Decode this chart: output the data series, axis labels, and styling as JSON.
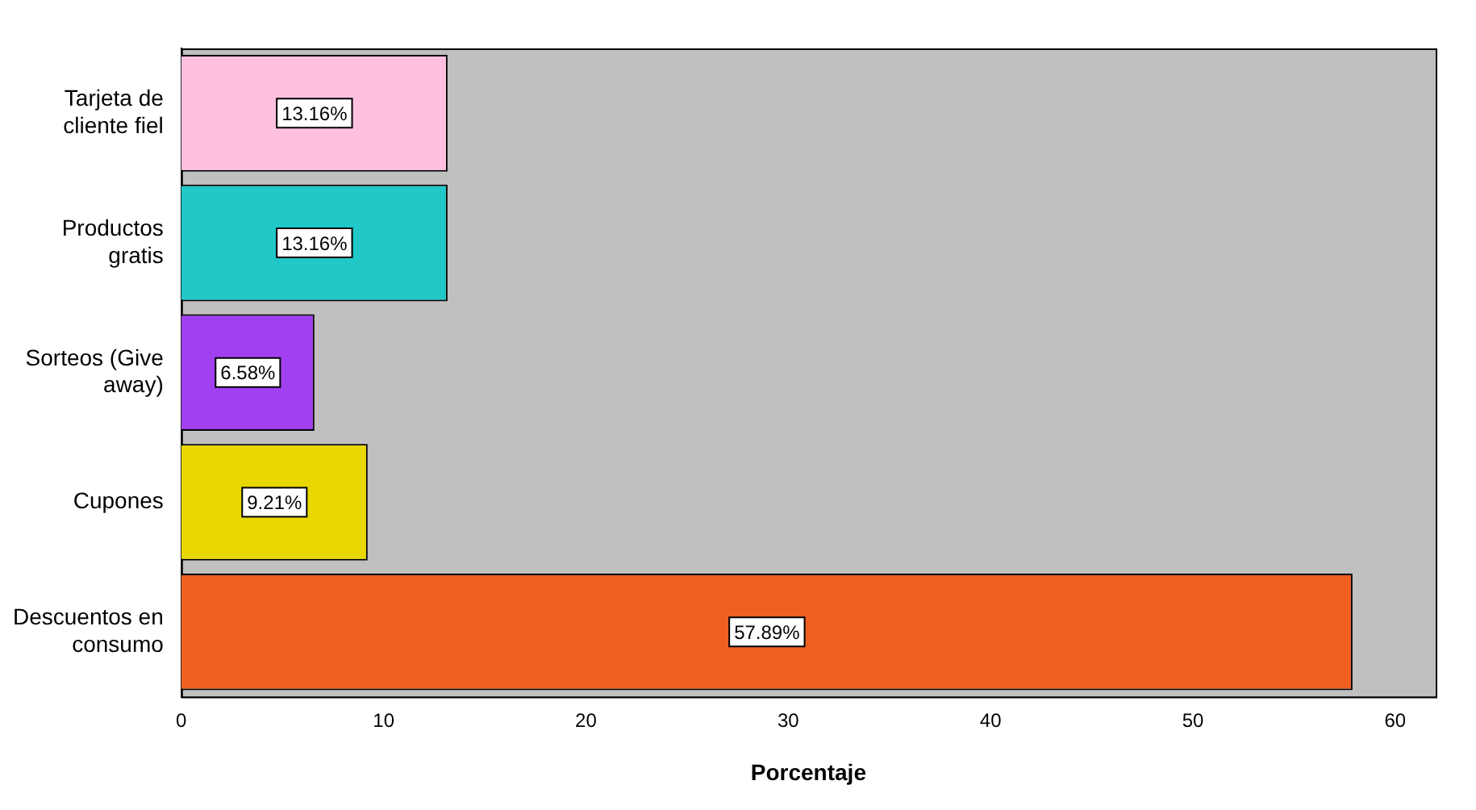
{
  "chart_data": {
    "type": "bar",
    "orientation": "horizontal",
    "xlabel": "Porcentaje",
    "categories": [
      "Tarjeta de cliente fiel",
      "Productos gratis",
      "Sorteos (Give away)",
      "Cupones",
      "Descuentos en consumo"
    ],
    "values": [
      13.16,
      13.16,
      6.58,
      9.21,
      57.89
    ],
    "colors": [
      "#ffc0e0",
      "#20c8c8",
      "#a040f0",
      "#e8d800",
      "#f06020"
    ],
    "value_labels": [
      "13.16%",
      "13.16%",
      "6.58%",
      "9.21%",
      "57.89%"
    ],
    "xlim": [
      0,
      62
    ],
    "xticks": [
      0,
      10,
      20,
      30,
      40,
      50,
      60
    ],
    "grid": false,
    "legend": false
  }
}
